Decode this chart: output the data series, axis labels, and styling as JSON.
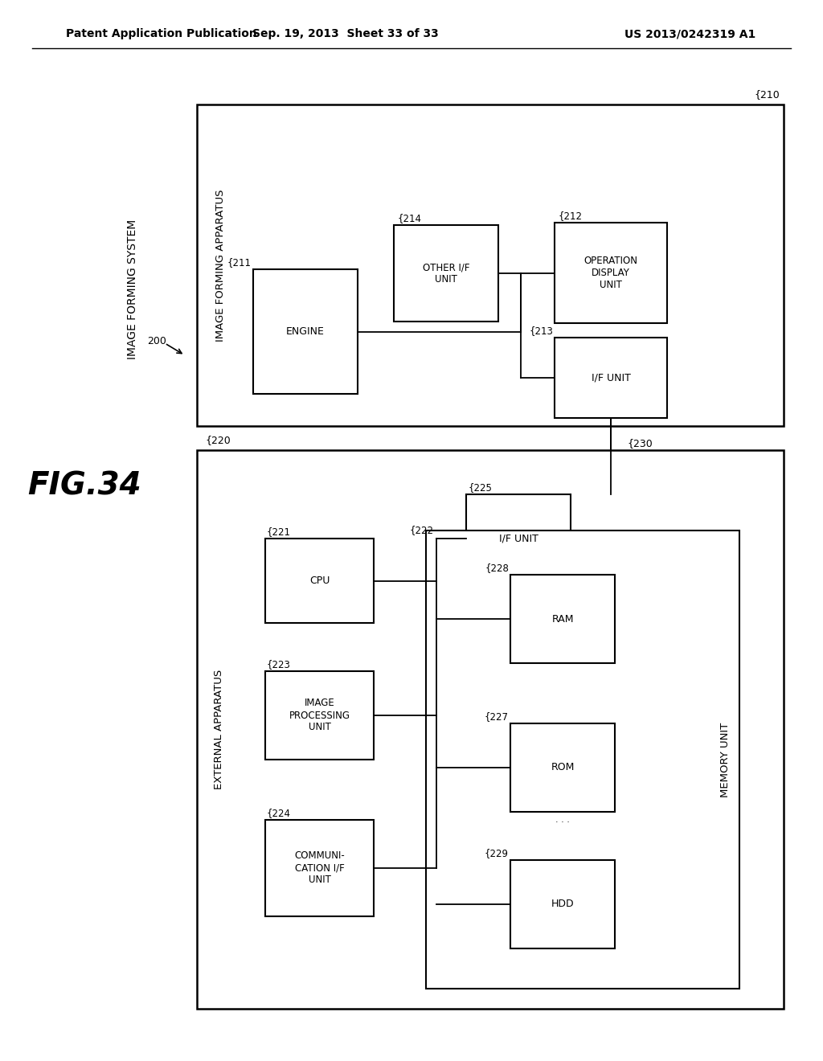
{
  "header_left": "Patent Application Publication",
  "header_mid": "Sep. 19, 2013  Sheet 33 of 33",
  "header_right": "US 2013/0242319 A1",
  "bg_color": "#ffffff"
}
